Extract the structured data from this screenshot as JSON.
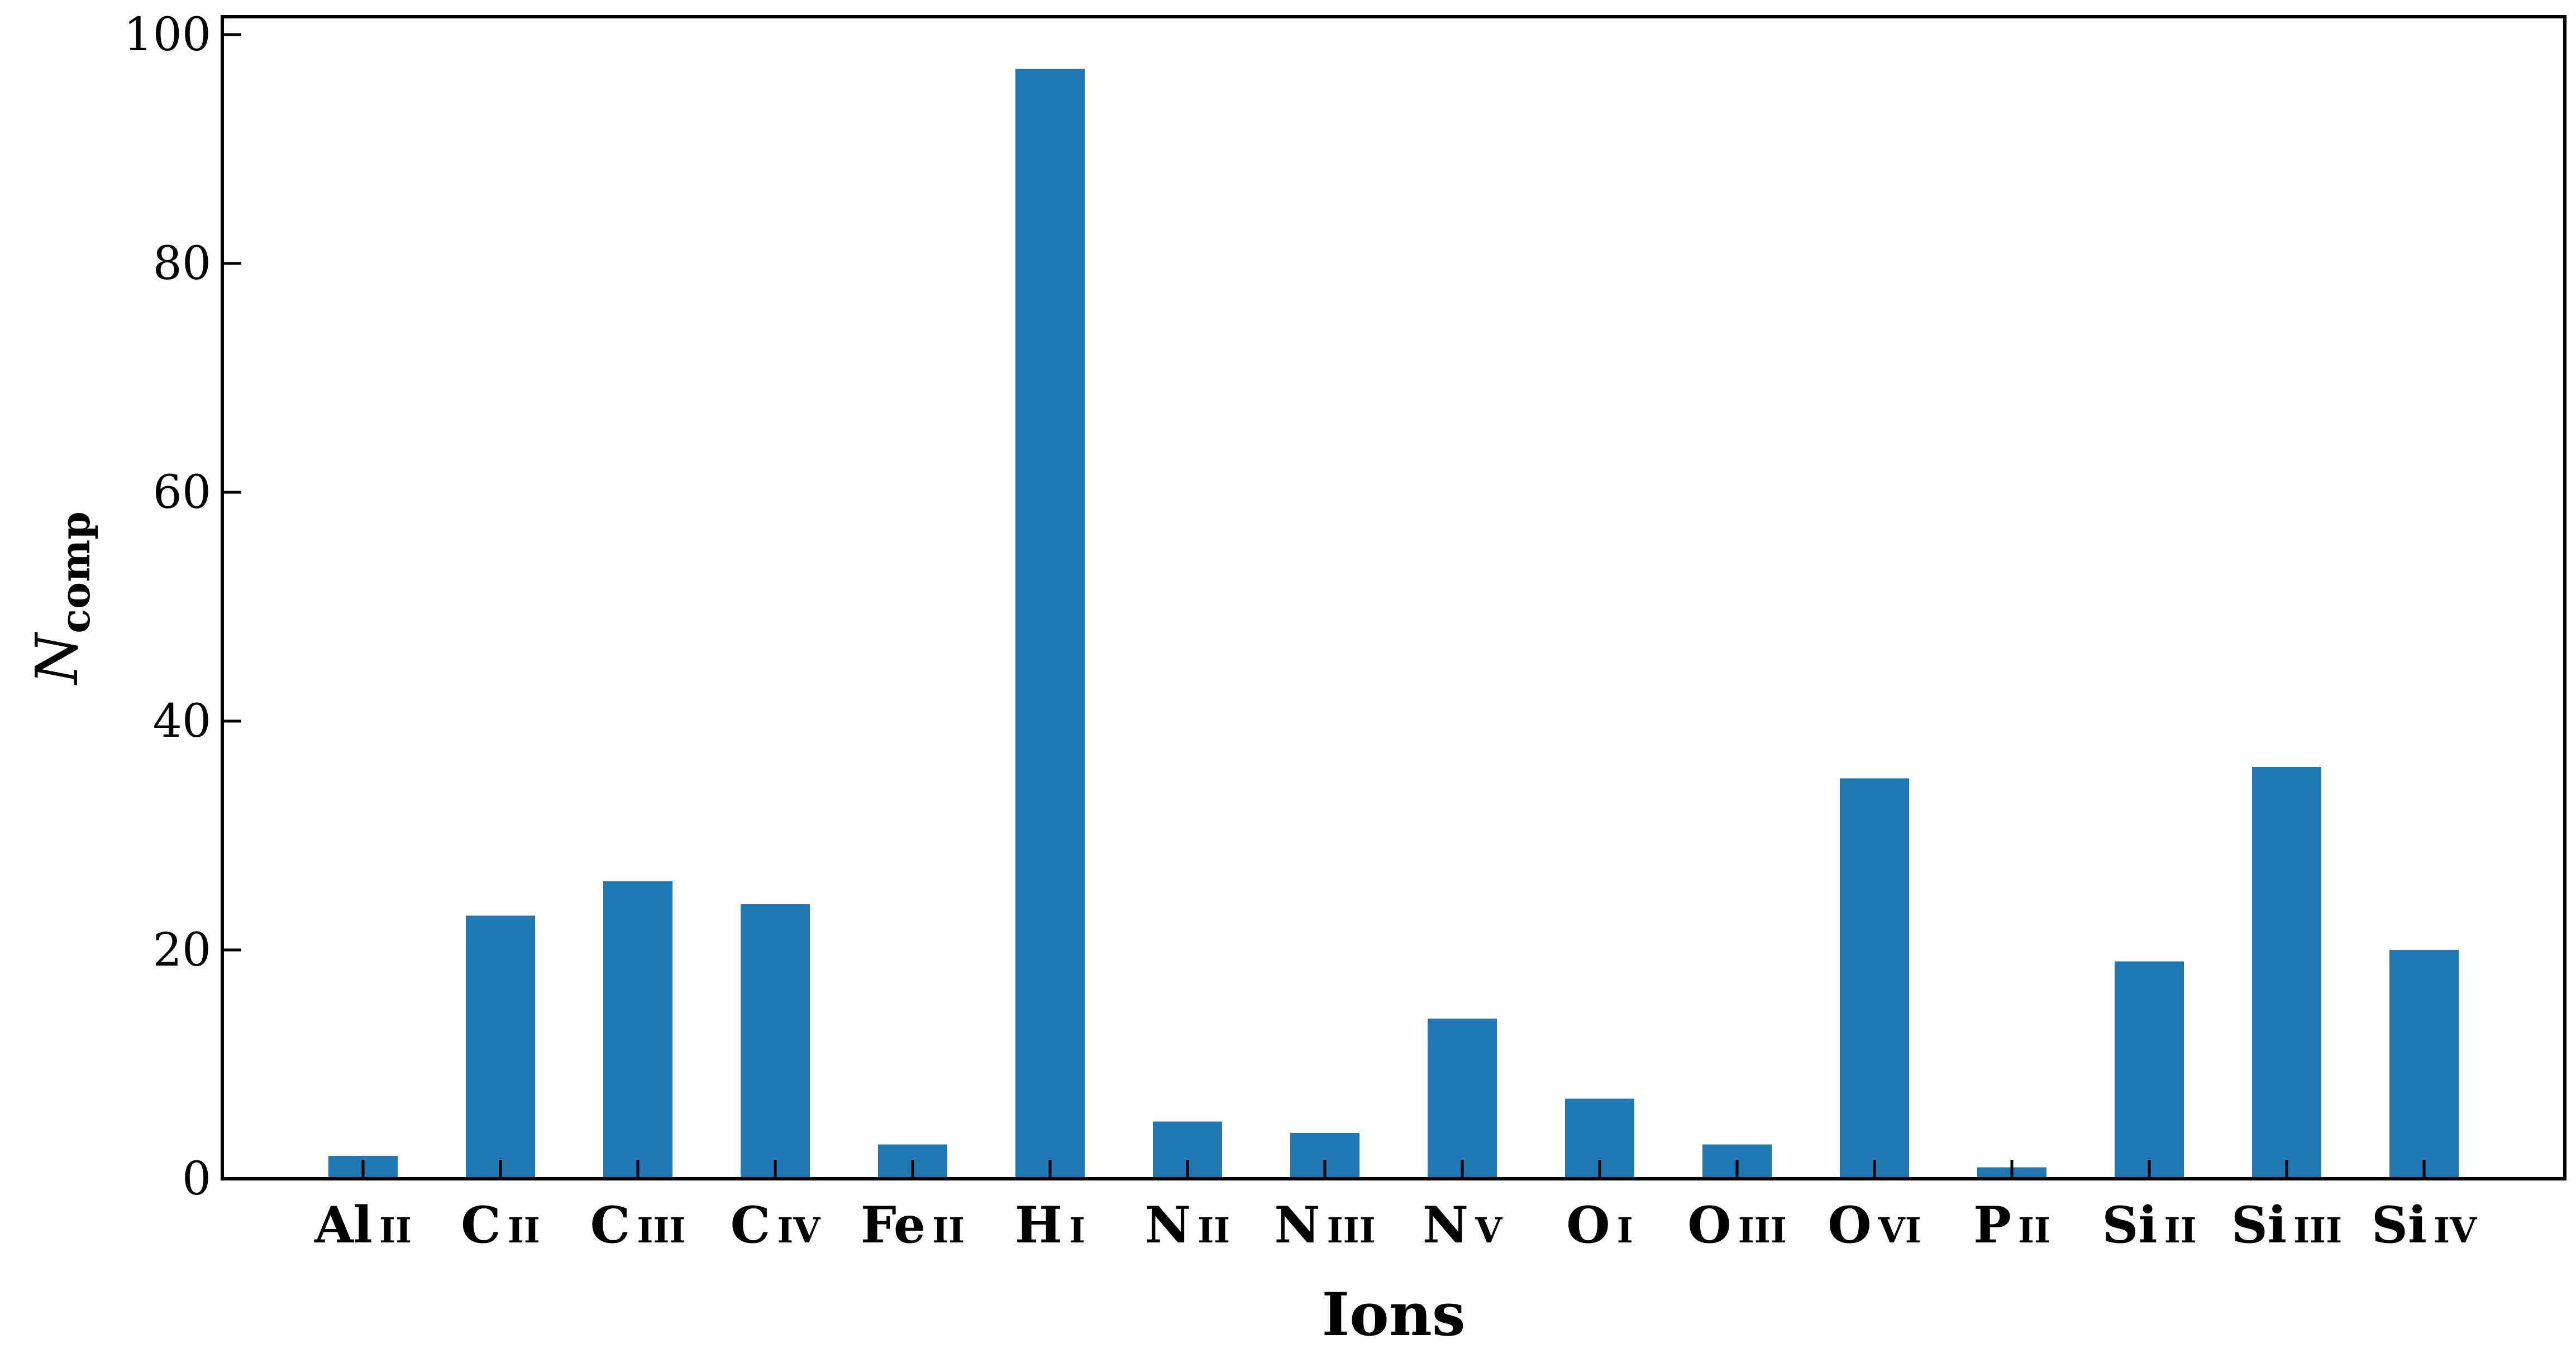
{
  "chart_data": {
    "type": "bar",
    "categories": [
      {
        "element": "Al",
        "state": "II"
      },
      {
        "element": "C",
        "state": "II"
      },
      {
        "element": "C",
        "state": "III"
      },
      {
        "element": "C",
        "state": "IV"
      },
      {
        "element": "Fe",
        "state": "II"
      },
      {
        "element": "H",
        "state": "I"
      },
      {
        "element": "N",
        "state": "II"
      },
      {
        "element": "N",
        "state": "III"
      },
      {
        "element": "N",
        "state": "V"
      },
      {
        "element": "O",
        "state": "I"
      },
      {
        "element": "O",
        "state": "III"
      },
      {
        "element": "O",
        "state": "VI"
      },
      {
        "element": "P",
        "state": "II"
      },
      {
        "element": "Si",
        "state": "II"
      },
      {
        "element": "Si",
        "state": "III"
      },
      {
        "element": "Si",
        "state": "IV"
      }
    ],
    "values": [
      2,
      23,
      26,
      24,
      3,
      97,
      5,
      4,
      14,
      7,
      3,
      35,
      1,
      19,
      36,
      20
    ],
    "xlabel": "Ions",
    "ylabel": {
      "symbol": "N",
      "subscript": "comp"
    },
    "ylim": [
      0,
      100
    ],
    "yticks": [
      "0",
      "20",
      "40",
      "60",
      "80",
      "100"
    ],
    "bar_color": "#1f77b4",
    "grid": false,
    "legend": "none"
  }
}
